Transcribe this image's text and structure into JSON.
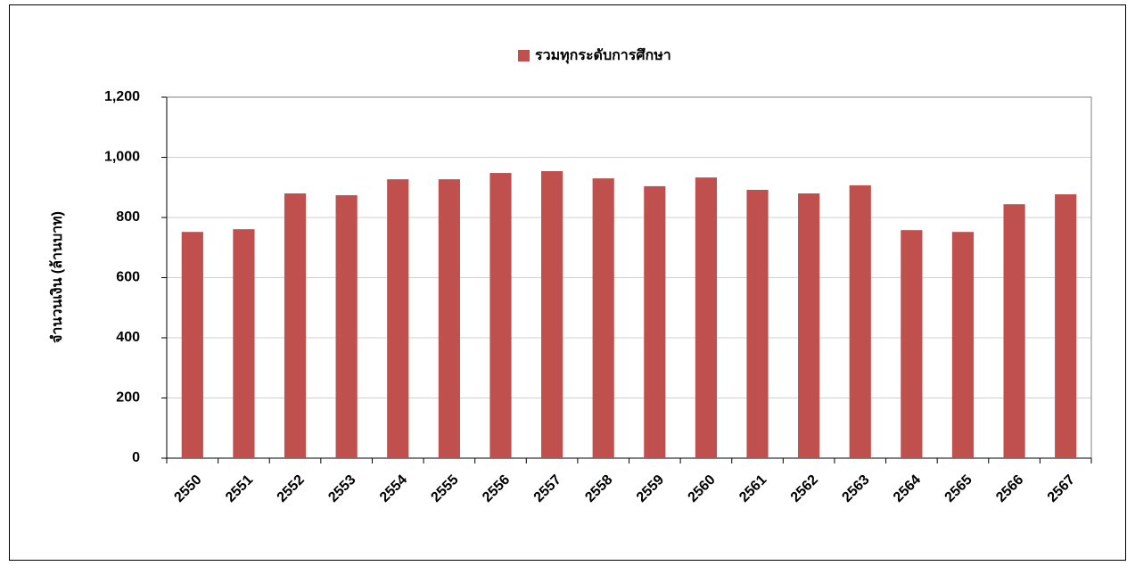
{
  "chart_data": {
    "type": "bar",
    "y_label": "จำนวนเงิน (ล้านบาท)",
    "categories": [
      "2550",
      "2551",
      "2552",
      "2553",
      "2554",
      "2555",
      "2556",
      "2557",
      "2558",
      "2559",
      "2560",
      "2561",
      "2562",
      "2563",
      "2564",
      "2565",
      "2566",
      "2567"
    ],
    "series": [
      {
        "name": "รวมทุกระดับการศึกษา",
        "color": "#c0504d",
        "values": [
          752,
          761,
          880,
          874,
          927,
          927,
          948,
          954,
          930,
          904,
          933,
          892,
          880,
          907,
          758,
          752,
          844,
          877
        ]
      }
    ],
    "ylim": [
      0,
      1200
    ],
    "yticks": [
      0,
      200,
      400,
      600,
      800,
      {
        "value": 1000,
        "label": "1,000"
      },
      {
        "value": 1200,
        "label": "1,200"
      }
    ],
    "grid": true,
    "legend": "top"
  }
}
